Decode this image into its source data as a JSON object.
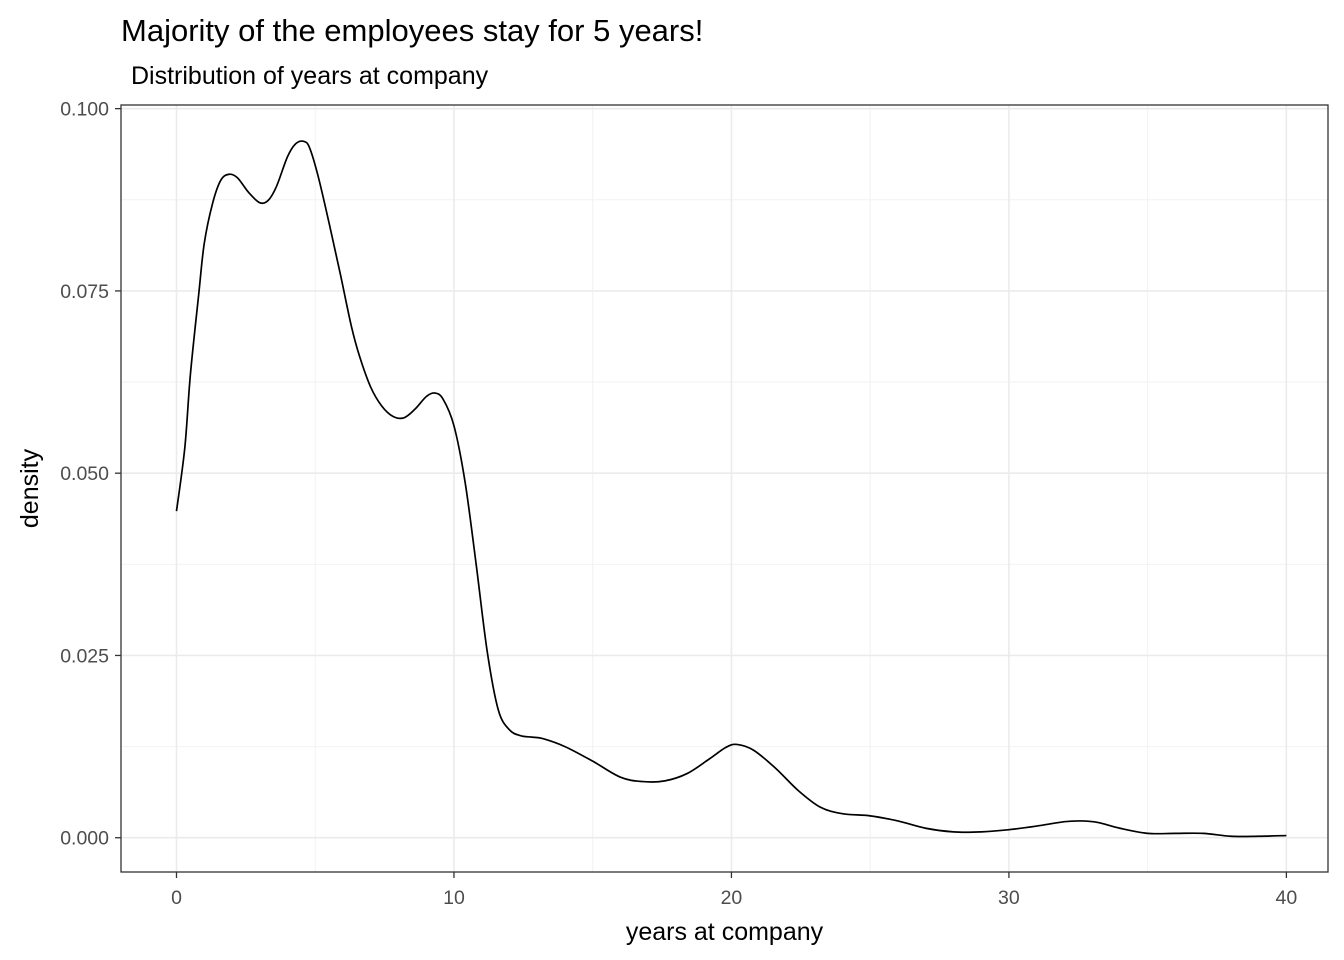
{
  "chart_data": {
    "type": "line",
    "title": "Majority of the employees stay for 5 years!",
    "subtitle": "Distribution of years at company",
    "xlabel": "years at company",
    "ylabel": "density",
    "xlim": [
      -2,
      41.5
    ],
    "ylim": [
      -0.0047,
      0.1005
    ],
    "xticks": [
      0,
      10,
      20,
      30,
      40
    ],
    "xtick_labels": [
      "0",
      "10",
      "20",
      "30",
      "40"
    ],
    "yticks": [
      0.0,
      0.025,
      0.05,
      0.075,
      0.1
    ],
    "ytick_labels": [
      "0.000",
      "0.025",
      "0.050",
      "0.075",
      "0.100"
    ],
    "grid": true,
    "series": [
      {
        "x": [
          0,
          0.3,
          0.5,
          0.8,
          1.0,
          1.3,
          1.6,
          1.9,
          2.2,
          2.6,
          3.0,
          3.3,
          3.6,
          4.0,
          4.3,
          4.6,
          4.8,
          5.1,
          5.5,
          5.9,
          6.3,
          6.6,
          7.0,
          7.4,
          7.8,
          8.2,
          8.6,
          9.0,
          9.3,
          9.6,
          10.0,
          10.4,
          10.8,
          11.2,
          11.6,
          12.0,
          12.4,
          12.8,
          13.2,
          14.0,
          15.0,
          16.0,
          16.8,
          17.6,
          18.4,
          19.2,
          19.8,
          20.2,
          20.8,
          21.6,
          22.4,
          23.2,
          24.0,
          25.0,
          26.0,
          27.0,
          28.0,
          29.0,
          30.0,
          31.0,
          32.0,
          32.6,
          33.2,
          34.0,
          35.0,
          36.0,
          37.0,
          38.0,
          39.0,
          40.0
        ],
        "y": [
          0.0448,
          0.0535,
          0.0635,
          0.0745,
          0.0815,
          0.087,
          0.0902,
          0.091,
          0.0905,
          0.0885,
          0.0871,
          0.0874,
          0.0893,
          0.0934,
          0.0952,
          0.0955,
          0.0946,
          0.0908,
          0.0843,
          0.0774,
          0.0702,
          0.066,
          0.0618,
          0.0592,
          0.0578,
          0.0576,
          0.0588,
          0.0605,
          0.061,
          0.0602,
          0.0565,
          0.0488,
          0.0375,
          0.0255,
          0.0175,
          0.0148,
          0.014,
          0.0138,
          0.0136,
          0.0125,
          0.0105,
          0.0083,
          0.0077,
          0.0078,
          0.0088,
          0.0108,
          0.0124,
          0.0128,
          0.012,
          0.0095,
          0.0065,
          0.0042,
          0.0033,
          0.003,
          0.0023,
          0.0013,
          0.0008,
          0.0008,
          0.0011,
          0.0016,
          0.0022,
          0.0023,
          0.0021,
          0.0013,
          0.0006,
          0.0006,
          0.0006,
          0.0002,
          0.0002,
          0.0003
        ]
      }
    ]
  }
}
